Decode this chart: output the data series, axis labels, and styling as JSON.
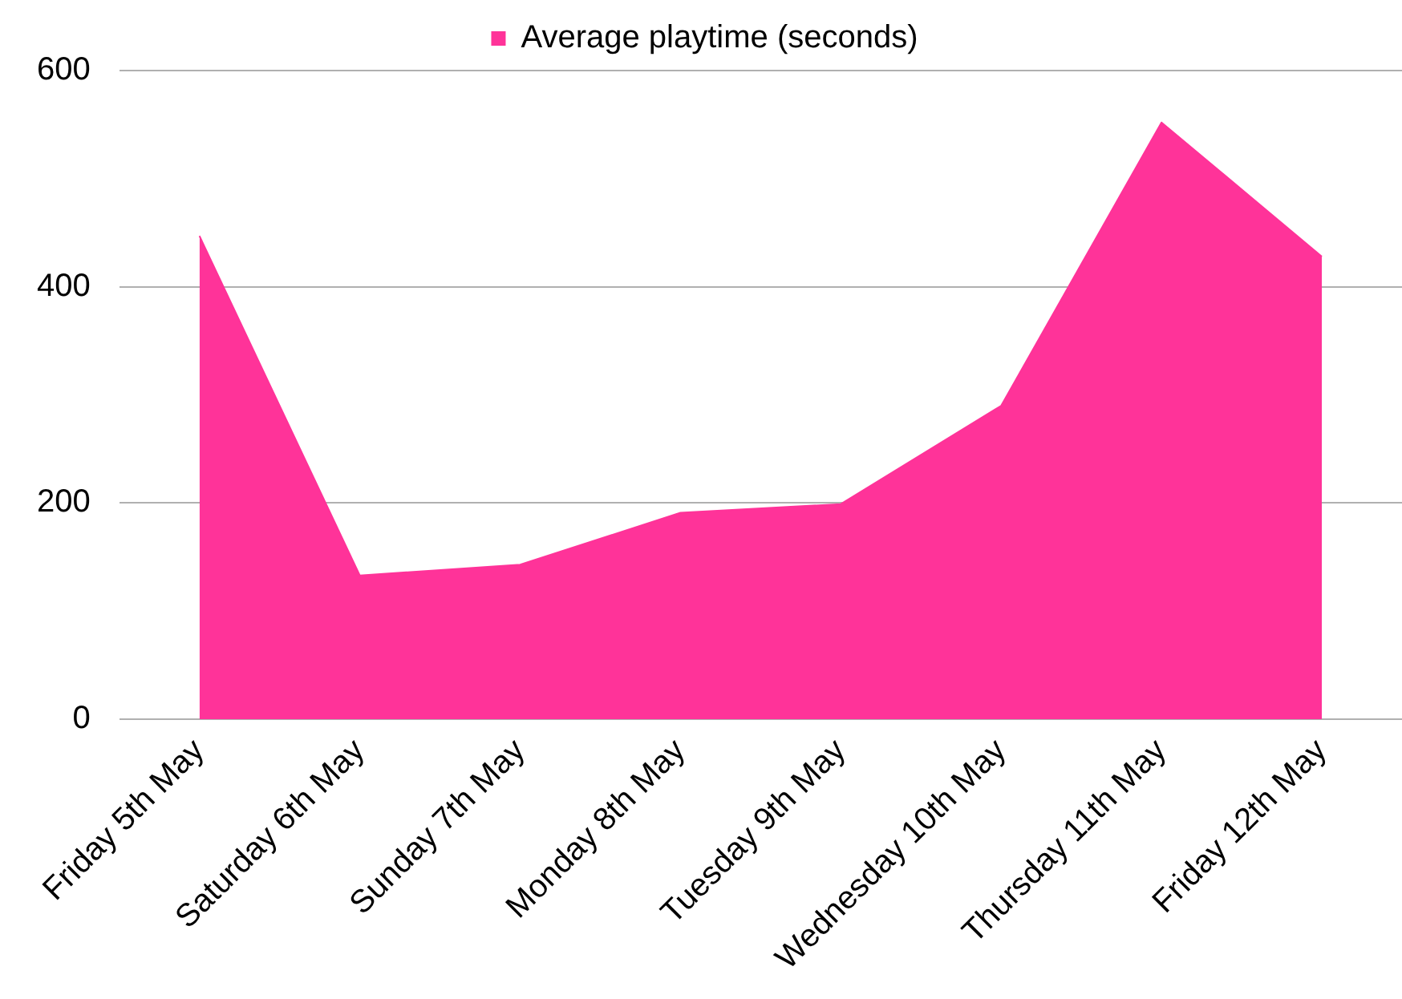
{
  "chart_data": {
    "type": "area",
    "categories": [
      "Friday 5th May",
      "Saturday 6th May",
      "Sunday 7th May",
      "Monday 8th May",
      "Tuesday 9th May",
      "Wednesday 10th May",
      "Thursday 11th May",
      "Friday 12th May"
    ],
    "series": [
      {
        "name": "Average playtime (seconds)",
        "color": "#ff3399",
        "values": [
          447,
          133,
          143,
          191,
          199,
          290,
          552,
          428
        ]
      }
    ],
    "ylim": [
      0,
      600
    ],
    "yticks": [
      0,
      200,
      400,
      600
    ],
    "grid": "y",
    "legend": "top",
    "marker": "none"
  }
}
